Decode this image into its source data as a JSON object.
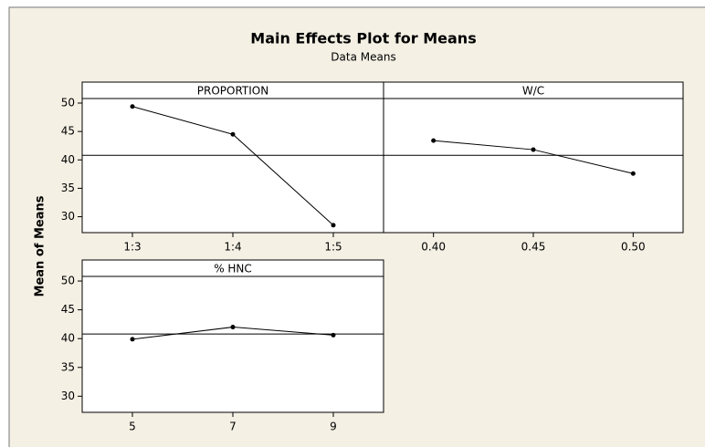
{
  "chart_data": {
    "type": "line",
    "title": "Main Effects Plot for Means",
    "subtitle": "Data Means",
    "ylabel": "Mean of Means",
    "ylim": [
      27.2,
      50.8
    ],
    "yticks": [
      30,
      35,
      40,
      45,
      50
    ],
    "reference_line": 40.8,
    "color": "#000000",
    "panels": [
      {
        "name": "PROPORTION",
        "categories": [
          "1:3",
          "1:4",
          "1:5"
        ],
        "values": [
          49.4,
          44.5,
          28.5
        ]
      },
      {
        "name": "W/C",
        "categories": [
          "0.40",
          "0.45",
          "0.50"
        ],
        "values": [
          43.4,
          41.8,
          37.6
        ]
      },
      {
        "name": "% HNC",
        "categories": [
          "5",
          "7",
          "9"
        ],
        "values": [
          39.9,
          42.0,
          40.6
        ]
      }
    ]
  }
}
